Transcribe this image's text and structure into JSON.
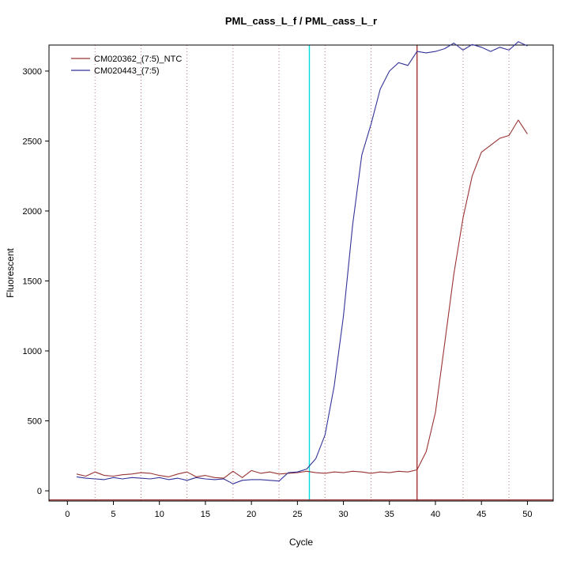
{
  "chart_data": {
    "type": "line",
    "title": "PML_cass_L_f / PML_cass_L_r",
    "xlabel": "Cycle",
    "ylabel": "Fluorescent",
    "xlim": [
      -2,
      52.8
    ],
    "ylim": [
      -73,
      3186
    ],
    "xticks": [
      0,
      5,
      10,
      15,
      20,
      25,
      30,
      35,
      40,
      45,
      50
    ],
    "yticks": [
      0,
      500,
      1000,
      1500,
      2000,
      2500,
      3000
    ],
    "grid": "dotted-vertical",
    "legend_position": "top-left",
    "x": [
      1,
      2,
      3,
      4,
      5,
      6,
      7,
      8,
      9,
      10,
      11,
      12,
      13,
      14,
      15,
      16,
      17,
      18,
      19,
      20,
      21,
      22,
      23,
      24,
      25,
      26,
      27,
      28,
      29,
      30,
      31,
      32,
      33,
      34,
      35,
      36,
      37,
      38,
      39,
      40,
      41,
      42,
      43,
      44,
      45,
      46,
      47,
      48,
      49,
      50
    ],
    "series": [
      {
        "name": "CM020362_(7:5)_NTC",
        "color": "#993333",
        "values": [
          120,
          105,
          135,
          110,
          105,
          115,
          120,
          130,
          125,
          110,
          100,
          120,
          135,
          100,
          110,
          95,
          90,
          140,
          95,
          145,
          125,
          135,
          120,
          125,
          130,
          140,
          130,
          125,
          135,
          130,
          140,
          135,
          125,
          135,
          130,
          140,
          135,
          150,
          280,
          560,
          1050,
          1550,
          1950,
          2250,
          2420,
          2470,
          2520,
          2540,
          2650,
          2550
        ]
      },
      {
        "name": "CM020443_(7:5)",
        "color": "#333399",
        "values": [
          100,
          90,
          85,
          80,
          95,
          85,
          95,
          90,
          85,
          95,
          80,
          90,
          75,
          95,
          85,
          80,
          85,
          50,
          75,
          80,
          80,
          75,
          70,
          130,
          135,
          155,
          230,
          400,
          750,
          1250,
          1900,
          2400,
          2620,
          2870,
          3000,
          3060,
          3040,
          3140,
          3130,
          3140,
          3160,
          3200,
          3150,
          3190,
          3170,
          3140,
          3170,
          3150,
          3210,
          3180
        ]
      }
    ],
    "vlines": [
      {
        "x": 26.3,
        "color": "#00dddd",
        "style": "solid",
        "name": "ct-marker-cyan"
      },
      {
        "x": 38.0,
        "color": "#aa3333",
        "style": "solid",
        "name": "ct-marker-red"
      }
    ],
    "dotted_vlines": {
      "xs": [
        3,
        8,
        13,
        18,
        23,
        28,
        33,
        38,
        43,
        48
      ],
      "color": "#cc7777"
    },
    "hlines": [
      {
        "y": -65,
        "color": "#993333",
        "name": "baseline-threshold-line"
      }
    ]
  }
}
